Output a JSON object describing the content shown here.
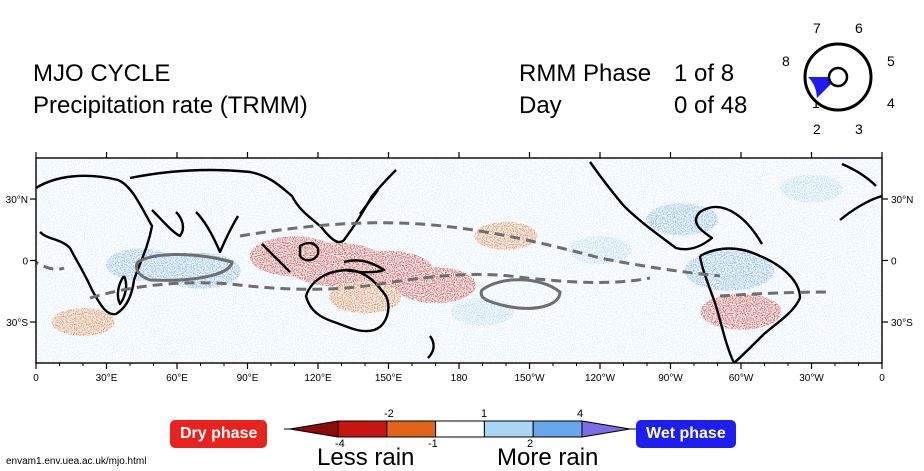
{
  "header": {
    "title_line1": "MJO CYCLE",
    "title_line2": "Precipitation rate (TRMM)",
    "rmm_label": "RMM Phase",
    "rmm_value": "1 of 8",
    "day_label": "Day",
    "day_value": "0 of 48"
  },
  "phase_dial": {
    "labels": [
      "1",
      "2",
      "3",
      "4",
      "5",
      "6",
      "7",
      "8"
    ],
    "active_phase": 1,
    "active_color": "#1c1cf0"
  },
  "chart_data": {
    "type": "heatmap",
    "title": "MJO CYCLE Precipitation rate (TRMM)",
    "x_ticks": [
      "0",
      "30°E",
      "60°E",
      "90°E",
      "120°E",
      "150°E",
      "180",
      "150°W",
      "120°W",
      "90°W",
      "60°W",
      "30°W",
      "0"
    ],
    "y_ticks": [
      "30°N",
      "0",
      "30°S"
    ],
    "xlim": [
      0,
      360
    ],
    "ylim": [
      -50,
      50
    ],
    "colorbar": {
      "bounds": [
        -4,
        -2,
        -1,
        1,
        2,
        4
      ],
      "top_labels": [
        "-2",
        "1",
        "4"
      ],
      "bottom_labels": [
        "-4",
        "-1",
        "2"
      ],
      "colors": [
        "#8b0a0a",
        "#c8150f",
        "#e0651a",
        "#ffffff",
        "#a9d6f5",
        "#68a6ea",
        "#7a6ee6"
      ]
    },
    "anomaly_regions": [
      {
        "lon": 110,
        "lat": 2,
        "value": -3
      },
      {
        "lon": 128,
        "lat": -2,
        "value": -3.5
      },
      {
        "lon": 150,
        "lat": -5,
        "value": -3
      },
      {
        "lon": 170,
        "lat": -12,
        "value": -2.5
      },
      {
        "lon": 140,
        "lat": -18,
        "value": -2
      },
      {
        "lon": 200,
        "lat": 12,
        "value": -1.5
      },
      {
        "lon": 300,
        "lat": -25,
        "value": -2.5
      },
      {
        "lon": 20,
        "lat": -30,
        "value": -1.5
      },
      {
        "lon": 45,
        "lat": -2,
        "value": 2
      },
      {
        "lon": 70,
        "lat": -5,
        "value": 2.5
      },
      {
        "lon": 240,
        "lat": 5,
        "value": 1.5
      },
      {
        "lon": 295,
        "lat": -5,
        "value": 3
      },
      {
        "lon": 275,
        "lat": 20,
        "value": 2
      },
      {
        "lon": 330,
        "lat": 35,
        "value": 1.5
      },
      {
        "lon": 190,
        "lat": -25,
        "value": 1.5
      }
    ]
  },
  "legend": {
    "dry_label": "Dry phase",
    "wet_label": "Wet phase",
    "dry_color": "#e8231d",
    "wet_color": "#1e1ef0",
    "less_rain": "Less rain",
    "more_rain": "More rain"
  },
  "footer": {
    "url": "envam1.env.uea.ac.uk/mjo.html"
  }
}
